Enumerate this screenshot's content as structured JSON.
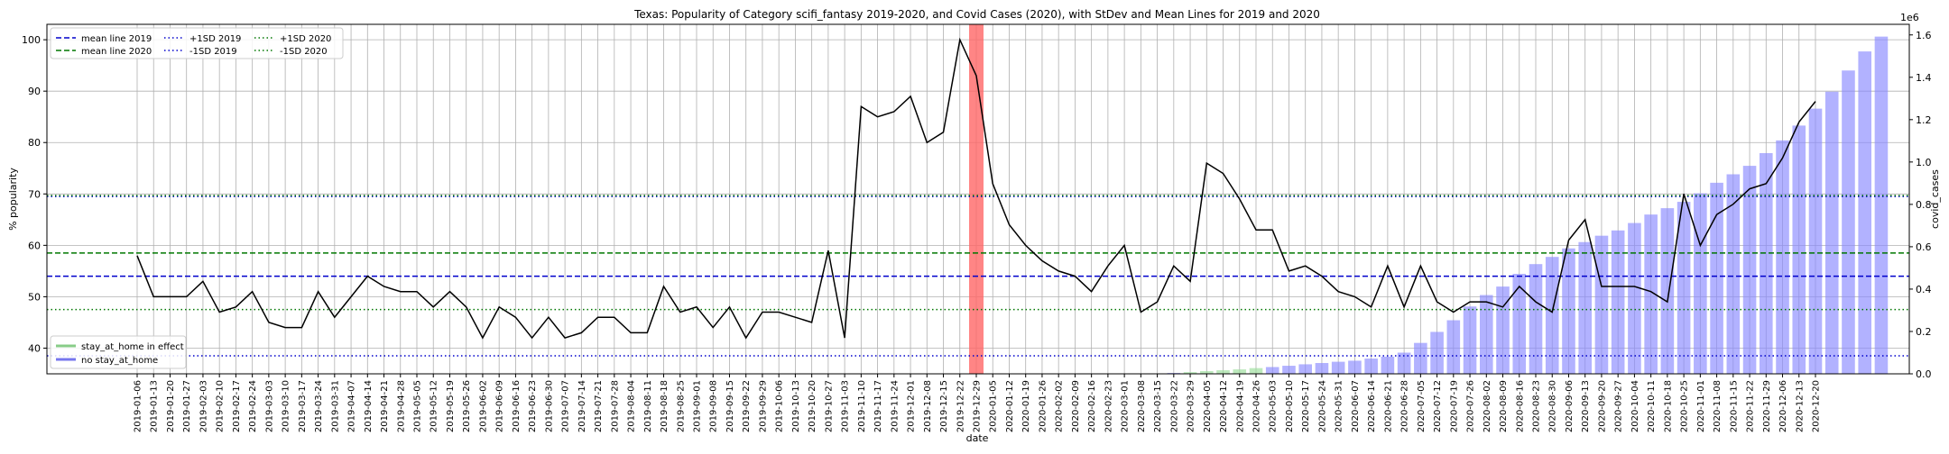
{
  "chart_data": {
    "type": "line+bar",
    "title": "Texas: Popularity of Category scifi_fantasy 2019-2020, and Covid Cases (2020), with StDev and Mean Lines for 2019 and 2020",
    "xlabel": "date",
    "ylabel_left": "% popularity",
    "ylabel_right": "covid_cases",
    "right_axis_multiplier": "1e6",
    "ylim_left": [
      35,
      103
    ],
    "yticks_left": [
      "40",
      "50",
      "60",
      "70",
      "80",
      "90",
      "100"
    ],
    "ylim_right": [
      0,
      1.65
    ],
    "yticks_right": [
      "0.0",
      "0.2",
      "0.4",
      "0.6",
      "0.8",
      "1.0",
      "1.2",
      "1.4",
      "1.6"
    ],
    "grid": true,
    "dates": [
      "2019-01-06",
      "2019-01-13",
      "2019-01-20",
      "2019-01-27",
      "2019-02-03",
      "2019-02-10",
      "2019-02-17",
      "2019-02-24",
      "2019-03-03",
      "2019-03-10",
      "2019-03-17",
      "2019-03-24",
      "2019-03-31",
      "2019-04-07",
      "2019-04-14",
      "2019-04-21",
      "2019-04-28",
      "2019-05-05",
      "2019-05-12",
      "2019-05-19",
      "2019-05-26",
      "2019-06-02",
      "2019-06-09",
      "2019-06-16",
      "2019-06-23",
      "2019-06-30",
      "2019-07-07",
      "2019-07-14",
      "2019-07-21",
      "2019-07-28",
      "2019-08-04",
      "2019-08-11",
      "2019-08-18",
      "2019-08-25",
      "2019-09-01",
      "2019-09-08",
      "2019-09-15",
      "2019-09-22",
      "2019-09-29",
      "2019-10-06",
      "2019-10-13",
      "2019-10-20",
      "2019-10-27",
      "2019-11-03",
      "2019-11-10",
      "2019-11-17",
      "2019-11-24",
      "2019-12-01",
      "2019-12-08",
      "2019-12-15",
      "2019-12-22",
      "2019-12-29",
      "2020-01-05",
      "2020-01-12",
      "2020-01-19",
      "2020-01-26",
      "2020-02-02",
      "2020-02-09",
      "2020-02-16",
      "2020-02-23",
      "2020-03-01",
      "2020-03-08",
      "2020-03-15",
      "2020-03-22",
      "2020-03-29",
      "2020-04-05",
      "2020-04-12",
      "2020-04-19",
      "2020-04-26",
      "2020-05-03",
      "2020-05-10",
      "2020-05-17",
      "2020-05-24",
      "2020-05-31",
      "2020-06-07",
      "2020-06-14",
      "2020-06-21",
      "2020-06-28",
      "2020-07-05",
      "2020-07-12",
      "2020-07-19",
      "2020-07-26",
      "2020-08-02",
      "2020-08-09",
      "2020-08-16",
      "2020-08-23",
      "2020-08-30",
      "2020-09-06",
      "2020-09-13",
      "2020-09-20",
      "2020-09-27",
      "2020-10-04",
      "2020-10-11",
      "2020-10-18",
      "2020-10-25",
      "2020-11-01",
      "2020-11-08",
      "2020-11-15",
      "2020-11-22",
      "2020-11-29",
      "2020-12-06",
      "2020-12-13",
      "2020-12-20"
    ],
    "popularity": [
      58,
      50,
      50,
      50,
      53,
      47,
      48,
      51,
      45,
      44,
      44,
      51,
      46,
      50,
      54,
      52,
      51,
      51,
      48,
      51,
      48,
      42,
      48,
      46,
      42,
      46,
      42,
      43,
      46,
      46,
      43,
      43,
      52,
      47,
      48,
      44,
      48,
      42,
      47,
      47,
      46,
      45,
      59,
      42,
      87,
      85,
      86,
      89,
      80,
      82,
      100,
      93,
      72,
      64,
      60,
      57,
      55,
      54,
      51,
      56,
      60,
      47,
      49,
      56,
      53,
      76,
      74,
      69,
      63,
      63,
      55,
      56,
      54,
      51,
      50,
      48,
      56,
      48,
      56,
      49,
      47,
      49,
      49,
      48,
      52,
      49,
      47,
      61,
      65,
      52,
      52,
      52,
      51,
      49,
      70,
      60,
      66,
      68,
      71,
      72,
      77,
      84,
      88
    ],
    "covid_cases_millions": [
      0,
      0,
      0,
      0,
      0,
      0,
      0,
      0,
      0,
      0,
      0,
      0,
      0,
      0,
      0,
      0,
      0,
      0,
      0,
      0,
      0,
      0,
      0,
      0,
      0,
      0,
      0,
      0,
      0,
      0,
      0,
      0,
      0,
      0,
      0,
      0,
      0,
      0,
      0,
      0,
      0,
      0,
      0,
      0,
      0,
      0,
      0,
      0,
      0,
      0,
      0,
      0,
      0,
      0,
      0,
      0,
      0,
      0,
      0,
      0,
      0,
      0,
      0.002,
      0.004,
      0.008,
      0.013,
      0.017,
      0.021,
      0.027,
      0.032,
      0.038,
      0.045,
      0.051,
      0.057,
      0.062,
      0.072,
      0.081,
      0.1,
      0.146,
      0.198,
      0.253,
      0.318,
      0.372,
      0.412,
      0.472,
      0.518,
      0.552,
      0.592,
      0.622,
      0.652,
      0.677,
      0.712,
      0.752,
      0.782,
      0.812,
      0.852,
      0.902,
      0.942,
      0.982,
      1.042,
      1.102,
      1.172,
      1.252,
      1.332,
      1.432,
      1.522,
      1.592
    ],
    "stay_at_home_dates": [
      "2020-03-29",
      "2020-04-05",
      "2020-04-12",
      "2020-04-19",
      "2020-04-26"
    ],
    "highlight_date": "2019-12-29",
    "reference_lines": [
      {
        "name": "mean line 2019",
        "value": 54,
        "color": "#0000cc",
        "style": "dashed"
      },
      {
        "name": "mean line 2020",
        "value": 58.5,
        "color": "#007700",
        "style": "dashed"
      },
      {
        "name": "+1SD 2019",
        "value": 69.5,
        "color": "#0000cc",
        "style": "dotted"
      },
      {
        "name": "-1SD 2019",
        "value": 38.5,
        "color": "#0000cc",
        "style": "dotted"
      },
      {
        "name": "+1SD 2020",
        "value": 69.7,
        "color": "#007700",
        "style": "dotted"
      },
      {
        "name": "-1SD 2020",
        "value": 47.5,
        "color": "#007700",
        "style": "dotted"
      }
    ],
    "legend_top": [
      "mean line 2019",
      "mean line 2020",
      "+1SD 2019",
      "-1SD 2019",
      "+1SD 2020",
      "-1SD 2020"
    ],
    "legend_bottom": [
      {
        "name": "stay_at_home in effect",
        "color": "#88cc88"
      },
      {
        "name": "no stay_at_home",
        "color": "#7777ee"
      }
    ],
    "colors": {
      "line": "#000000",
      "bars_no_stay": "#8888ff",
      "bars_stay": "#99dd99",
      "highlight": "#ff6666"
    }
  }
}
